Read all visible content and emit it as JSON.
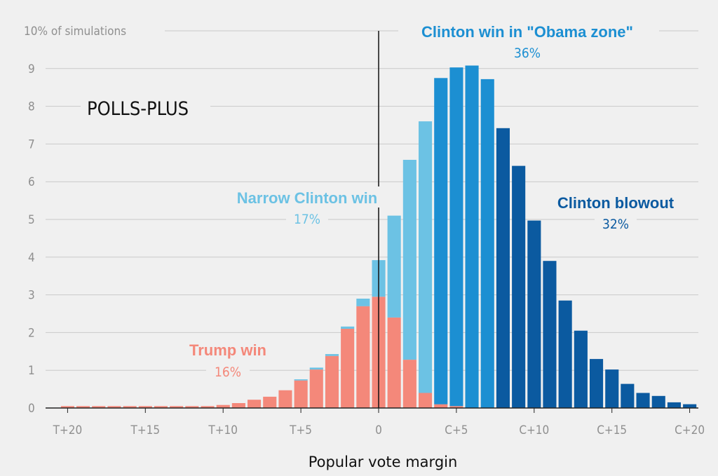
{
  "chart_data": {
    "type": "bar",
    "panel_label": "POLLS-PLUS",
    "xlabel": "Popular vote margin",
    "y_top_label": "10% of simulations",
    "ylim": [
      0,
      10
    ],
    "y_ticks": [
      "0",
      "1",
      "2",
      "3",
      "4",
      "5",
      "6",
      "7",
      "8",
      "9"
    ],
    "x_ticks": [
      {
        "x": -20,
        "label": "T+20"
      },
      {
        "x": -15,
        "label": "T+15"
      },
      {
        "x": -10,
        "label": "T+10"
      },
      {
        "x": -5,
        "label": "T+5"
      },
      {
        "x": 0,
        "label": "0"
      },
      {
        "x": 5,
        "label": "C+5"
      },
      {
        "x": 10,
        "label": "C+10"
      },
      {
        "x": 15,
        "label": "C+15"
      },
      {
        "x": 20,
        "label": "C+20"
      }
    ],
    "x": [
      -20,
      -19,
      -18,
      -17,
      -16,
      -15,
      -14,
      -13,
      -12,
      -11,
      -10,
      -9,
      -8,
      -7,
      -6,
      -5,
      -4,
      -3,
      -2,
      -1,
      0,
      1,
      2,
      3,
      4,
      5,
      6,
      7,
      8,
      9,
      10,
      11,
      12,
      13,
      14,
      15,
      16,
      17,
      18,
      19,
      20
    ],
    "series": [
      {
        "name": "Trump win",
        "color": "#f4887a",
        "values": [
          0.05,
          0.05,
          0.05,
          0.05,
          0.05,
          0.05,
          0.05,
          0.05,
          0.05,
          0.05,
          0.08,
          0.13,
          0.22,
          0.3,
          0.47,
          0.73,
          1.02,
          1.38,
          2.1,
          2.7,
          2.95,
          2.4,
          1.28,
          0.4,
          0.1,
          0.05,
          0,
          0,
          0,
          0,
          0,
          0,
          0,
          0,
          0,
          0,
          0,
          0,
          0,
          0,
          0
        ]
      },
      {
        "name": "Narrow Clinton win",
        "color": "#6cc2e4",
        "values": [
          0,
          0,
          0,
          0,
          0,
          0,
          0,
          0,
          0,
          0,
          0,
          0,
          0,
          0,
          0,
          0.03,
          0.05,
          0.05,
          0.06,
          0.2,
          0.97,
          2.7,
          5.3,
          7.2,
          0,
          0,
          0,
          0,
          0,
          0,
          0,
          0,
          0,
          0,
          0,
          0,
          0,
          0,
          0,
          0,
          0
        ]
      },
      {
        "name": "Clinton win in \"Obama zone\"",
        "color": "#1c8fd2",
        "values": [
          0,
          0,
          0,
          0,
          0,
          0,
          0,
          0,
          0,
          0,
          0,
          0,
          0,
          0,
          0,
          0,
          0,
          0,
          0,
          0,
          0,
          0,
          0,
          0,
          8.65,
          8.98,
          9.08,
          8.72,
          0,
          0,
          0,
          0,
          0,
          0,
          0,
          0,
          0,
          0,
          0,
          0,
          0
        ]
      },
      {
        "name": "Clinton blowout",
        "color": "#0b5aa0",
        "values": [
          0,
          0,
          0,
          0,
          0,
          0,
          0,
          0,
          0,
          0,
          0,
          0,
          0,
          0,
          0,
          0,
          0,
          0,
          0,
          0,
          0,
          0,
          0,
          0,
          0,
          0,
          0,
          0,
          7.42,
          6.42,
          4.97,
          3.9,
          2.85,
          2.05,
          1.3,
          1.02,
          0.64,
          0.4,
          0.32,
          0.15,
          0.1
        ]
      }
    ],
    "annotations": [
      {
        "title": "Clinton win in \"Obama zone\"",
        "pct": "36%",
        "color": "#1c8fd2"
      },
      {
        "title": "Narrow Clinton win",
        "pct": "17%",
        "color": "#6cc2e4"
      },
      {
        "title": "Clinton blowout",
        "pct": "32%",
        "color": "#0b5aa0"
      },
      {
        "title": "Trump win",
        "pct": "16%",
        "color": "#f4887a"
      }
    ]
  }
}
